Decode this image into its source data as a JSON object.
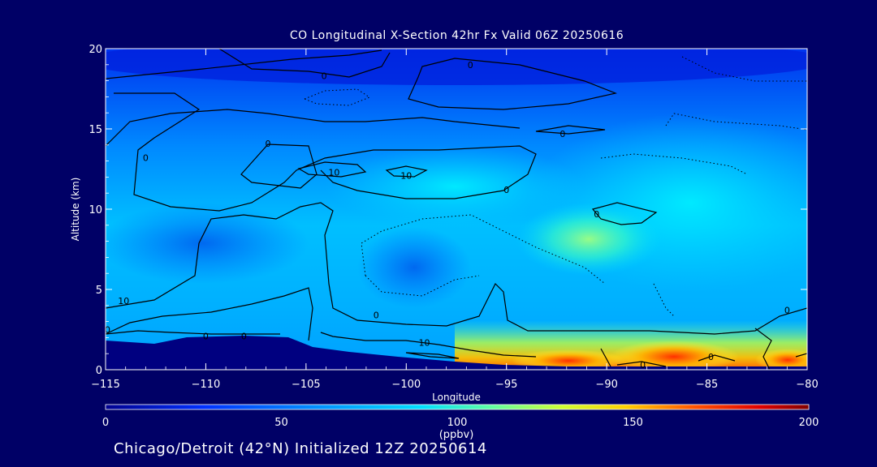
{
  "chart_data": {
    "type": "heatmap",
    "title": "CO Longitudinal X-Section 42hr  Fx Valid 06Z 20250616",
    "xlabel": "Longitude",
    "ylabel": "Altitude (km)",
    "xlim": [
      -115,
      -80
    ],
    "ylim": [
      0,
      20
    ],
    "x_ticks": [
      "−115",
      "−110",
      "−105",
      "−100",
      "−95",
      "−90",
      "−85",
      "−80"
    ],
    "y_ticks": [
      "0",
      "5",
      "10",
      "15",
      "20"
    ],
    "colorbar": {
      "ticks": [
        "0",
        "50",
        "100",
        "150",
        "200"
      ],
      "range": [
        0,
        200
      ],
      "unit": "(ppbv)"
    },
    "contour_labels": [
      {
        "text": "0",
        "lon": -104.1,
        "alt": 18.3
      },
      {
        "text": "0",
        "lon": -96.8,
        "alt": 19.0
      },
      {
        "text": "0",
        "lon": -92.2,
        "alt": 14.7
      },
      {
        "text": "0",
        "lon": -113.0,
        "alt": 13.2
      },
      {
        "text": "0",
        "lon": -106.9,
        "alt": 14.1
      },
      {
        "text": "10",
        "lon": -103.6,
        "alt": 12.3
      },
      {
        "text": "10",
        "lon": -100.0,
        "alt": 12.1
      },
      {
        "text": "0",
        "lon": -95.0,
        "alt": 11.2
      },
      {
        "text": "0",
        "lon": -90.5,
        "alt": 9.7
      },
      {
        "text": "10",
        "lon": -114.1,
        "alt": 4.3
      },
      {
        "text": "0",
        "lon": -114.9,
        "alt": 2.5
      },
      {
        "text": "0",
        "lon": -110.0,
        "alt": 2.1
      },
      {
        "text": "0",
        "lon": -108.1,
        "alt": 2.1
      },
      {
        "text": "0",
        "lon": -101.5,
        "alt": 3.4
      },
      {
        "text": "10",
        "lon": -99.1,
        "alt": 1.7
      },
      {
        "text": "0",
        "lon": -88.2,
        "alt": 0.3
      },
      {
        "text": "0",
        "lon": -84.8,
        "alt": 0.8
      },
      {
        "text": "0",
        "lon": -81.0,
        "alt": 3.7
      }
    ],
    "note_colormap_bands": "CO concentration field shown as colored bands"
  },
  "footer": {
    "caption": "Chicago/Detroit (42°N) Initialized 12Z 20250614"
  },
  "colors": {
    "background": "#000066",
    "terrain": "#000080"
  }
}
